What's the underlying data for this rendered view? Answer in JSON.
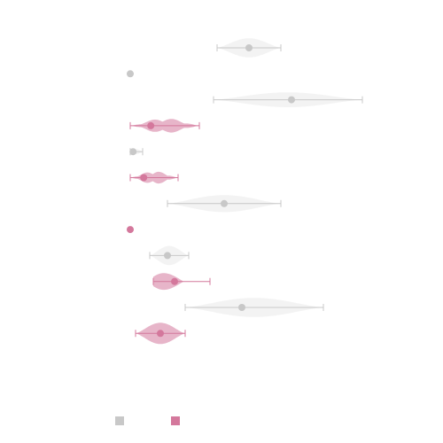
{
  "chart_data": {
    "type": "violin",
    "title": "",
    "xlabel": "",
    "ylabel": "",
    "xlim": [
      0,
      100
    ],
    "grid": false,
    "legend": {
      "placement": "bottom-left",
      "entries": [
        {
          "color": "#c8c8c8"
        },
        {
          "color": "#d4789c"
        }
      ]
    },
    "violins": [
      {
        "group": 0,
        "median": 34.0,
        "min": 25.0,
        "max": 43.0,
        "q1": 31.0,
        "q3": 37.0,
        "halfwidth": 0.45,
        "shape": "smooth"
      },
      {
        "group": 0,
        "median": 0.5,
        "min": 0.5,
        "max": 0.5,
        "q1": 0.5,
        "q3": 0.5,
        "halfwidth": 0.0,
        "shape": "point"
      },
      {
        "group": 0,
        "median": 46.0,
        "min": 24.0,
        "max": 66.0,
        "q1": 36.0,
        "q3": 56.0,
        "halfwidth": 0.35,
        "shape": "smooth"
      },
      {
        "group": 1,
        "median": 6.3,
        "min": 0.5,
        "max": 20.0,
        "q1": 3.0,
        "q3": 11.0,
        "halfwidth": 0.35,
        "shape": "wavy"
      },
      {
        "group": 0,
        "median": 1.3,
        "min": 0.5,
        "max": 4.0,
        "q1": 0.8,
        "q3": 2.0,
        "halfwidth": 0.12,
        "shape": "smooth"
      },
      {
        "group": 1,
        "median": 4.3,
        "min": 0.5,
        "max": 14.0,
        "q1": 1.5,
        "q3": 7.5,
        "halfwidth": 0.3,
        "shape": "wavy"
      },
      {
        "group": 0,
        "median": 27.0,
        "min": 11.0,
        "max": 43.0,
        "q1": 20.0,
        "q3": 34.0,
        "halfwidth": 0.4,
        "shape": "smooth"
      },
      {
        "group": 1,
        "median": 0.5,
        "min": 0.5,
        "max": 0.5,
        "q1": 0.5,
        "q3": 0.5,
        "halfwidth": 0.0,
        "shape": "point"
      },
      {
        "group": 0,
        "median": 11.0,
        "min": 6.0,
        "max": 17.0,
        "q1": 8.5,
        "q3": 13.5,
        "halfwidth": 0.45,
        "shape": "smooth"
      },
      {
        "group": 1,
        "median": 13.0,
        "min": 7.0,
        "max": 23.0,
        "q1": 9.0,
        "q3": 16.0,
        "halfwidth": 0.45,
        "shape": "skew"
      },
      {
        "group": 0,
        "median": 32.0,
        "min": 16.0,
        "max": 55.0,
        "q1": 24.0,
        "q3": 40.0,
        "halfwidth": 0.45,
        "shape": "smooth"
      },
      {
        "group": 1,
        "median": 9.0,
        "min": 2.0,
        "max": 16.0,
        "q1": 6.0,
        "q3": 12.0,
        "halfwidth": 0.5,
        "shape": "smooth"
      }
    ],
    "colors": {
      "group0": "#c8c8c8",
      "group1": "#d4789c"
    }
  }
}
